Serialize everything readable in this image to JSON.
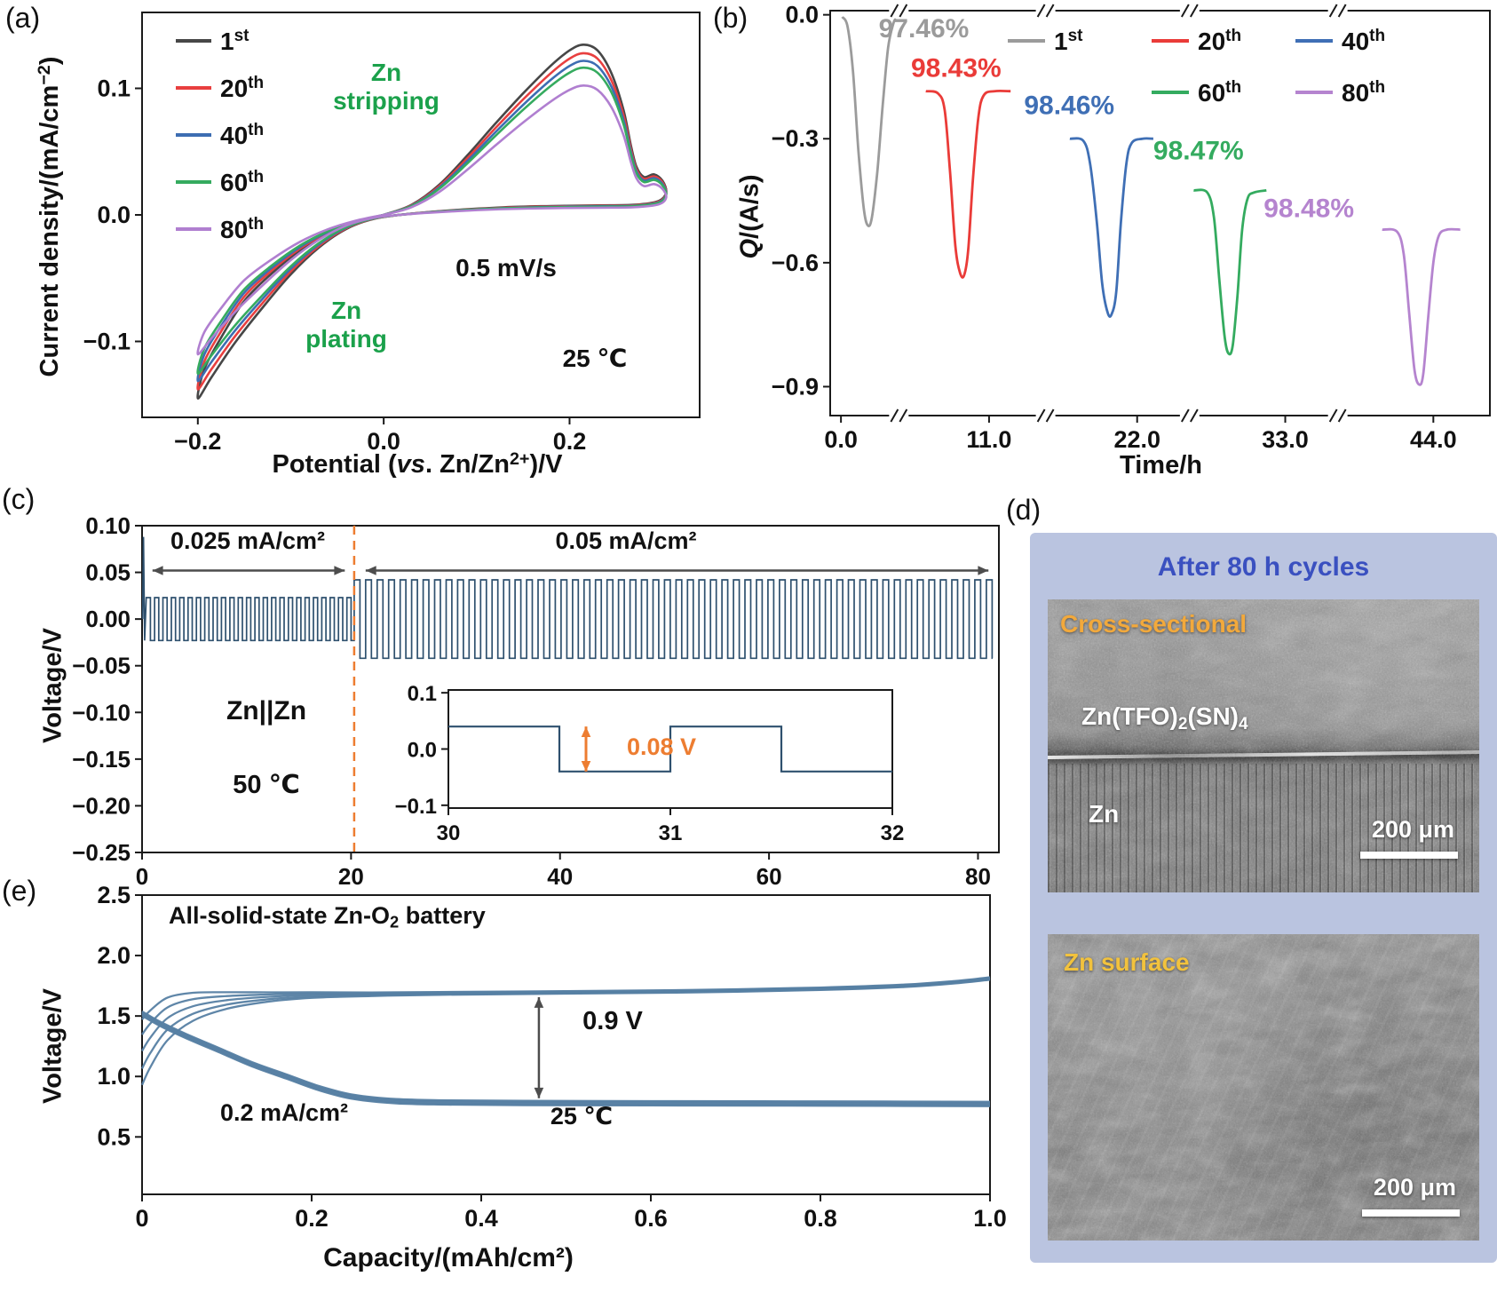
{
  "panel_tags": {
    "a": "(a)",
    "b": "(b)",
    "c": "(c)",
    "d": "(d)",
    "e": "(e)"
  },
  "chart_data": [
    {
      "id": "a",
      "type": "line",
      "title": "",
      "xlabel": "Potential (vs. Zn/Zn²⁺)/V",
      "xlabel_rich": [
        {
          "t": "Potential ("
        },
        {
          "t": "vs",
          "i": true
        },
        {
          "t": ". Zn/Zn"
        },
        {
          "t": "2+",
          "sup": true
        },
        {
          "t": ")/V"
        }
      ],
      "ylabel": "Current density/(mA/cm⁻²)",
      "ylabel_rich": [
        {
          "t": "Current density/(mA/cm"
        },
        {
          "t": "−2",
          "sup": true
        },
        {
          "t": ")"
        }
      ],
      "xlim": [
        -0.26,
        0.34
      ],
      "ylim": [
        -0.16,
        0.16
      ],
      "xticks": {
        "values": [
          -0.2,
          0,
          0.2
        ],
        "labels": [
          "−0.2",
          "0.0",
          "0.2"
        ]
      },
      "yticks": {
        "values": [
          -0.1,
          0,
          0.1
        ],
        "labels": [
          "−0.1",
          "0.0",
          "0.1"
        ]
      },
      "annotations": {
        "stripping": "Zn\nstripping",
        "plating": "Zn\nplating",
        "scan_rate": "0.5 mV/s",
        "temperature": "25 ℃",
        "green": "#1ba14b"
      },
      "base_shape": [
        [
          0.0,
          0.0
        ],
        [
          0.03,
          0.008
        ],
        [
          0.06,
          0.024
        ],
        [
          0.09,
          0.047
        ],
        [
          0.12,
          0.072
        ],
        [
          0.15,
          0.096
        ],
        [
          0.18,
          0.118
        ],
        [
          0.2,
          0.13
        ],
        [
          0.215,
          0.1345
        ],
        [
          0.23,
          0.13
        ],
        [
          0.245,
          0.112
        ],
        [
          0.258,
          0.083
        ],
        [
          0.266,
          0.055
        ],
        [
          0.272,
          0.038
        ],
        [
          0.28,
          0.03
        ],
        [
          0.291,
          0.032
        ],
        [
          0.3,
          0.027
        ],
        [
          0.304,
          0.018
        ],
        [
          0.296,
          0.011
        ],
        [
          0.27,
          0.008
        ],
        [
          0.23,
          0.0075
        ],
        [
          0.18,
          0.007
        ],
        [
          0.13,
          0.006
        ],
        [
          0.08,
          0.004
        ],
        [
          0.03,
          0.001
        ],
        [
          -0.01,
          -0.003
        ],
        [
          -0.04,
          -0.011
        ],
        [
          -0.07,
          -0.026
        ],
        [
          -0.1,
          -0.047
        ],
        [
          -0.13,
          -0.073
        ],
        [
          -0.16,
          -0.101
        ],
        [
          -0.185,
          -0.128
        ],
        [
          -0.2,
          -0.145
        ],
        [
          -0.193,
          -0.122
        ],
        [
          -0.175,
          -0.097
        ],
        [
          -0.15,
          -0.068
        ],
        [
          -0.12,
          -0.046
        ],
        [
          -0.09,
          -0.028
        ],
        [
          -0.06,
          -0.015
        ],
        [
          -0.03,
          -0.006
        ],
        [
          0.0,
          0.0
        ]
      ],
      "series": [
        {
          "num": "1",
          "ord": "st",
          "label": "1st",
          "color": "#474747",
          "scale": 1.0
        },
        {
          "num": "20",
          "ord": "th",
          "label": "20th",
          "color": "#e83f3f",
          "scale": 0.95
        },
        {
          "num": "40",
          "ord": "th",
          "label": "40th",
          "color": "#3d6db2",
          "scale": 0.905
        },
        {
          "num": "60",
          "ord": "th",
          "label": "60th",
          "color": "#35ab5f",
          "scale": 0.865
        },
        {
          "num": "80",
          "ord": "th",
          "label": "80th",
          "color": "#b07fd0",
          "scale": 0.76
        }
      ]
    },
    {
      "id": "b",
      "type": "line",
      "title": "",
      "xlabel": "Time/h",
      "ylabel": "Q/(A/s)",
      "ylabel_rich": [
        {
          "t": "Q",
          "i": true
        },
        {
          "t": "/(A/s)"
        }
      ],
      "xlim": [
        -0.8,
        48.2
      ],
      "ylim": [
        -0.97,
        0.01
      ],
      "xticks": {
        "values": [
          0,
          11,
          22,
          33,
          44
        ],
        "labels": [
          "0.0",
          "11.0",
          "22.0",
          "33.0",
          "44.0"
        ]
      },
      "yticks": {
        "values": [
          0,
          -0.3,
          -0.6,
          -0.9
        ],
        "labels": [
          "0.0",
          "−0.3",
          "−0.6",
          "−0.9"
        ]
      },
      "axis_breaks": [
        4.3,
        15.2,
        25.9,
        36.9
      ],
      "legend_positions": [
        [
          335,
          46
        ],
        [
          497,
          46
        ],
        [
          659,
          46
        ],
        [
          497,
          104
        ],
        [
          659,
          104
        ]
      ],
      "series": [
        {
          "num": "1",
          "ord": "st",
          "label": "1st",
          "color": "#9b9b9b",
          "efficiency": "97.46%",
          "label_at": [
            2.8,
            -0.055
          ],
          "points": [
            [
              0.1,
              -0.005
            ],
            [
              0.5,
              -0.03
            ],
            [
              0.9,
              -0.14
            ],
            [
              1.3,
              -0.33
            ],
            [
              1.7,
              -0.47
            ],
            [
              2.0,
              -0.51
            ],
            [
              2.3,
              -0.49
            ],
            [
              2.7,
              -0.38
            ],
            [
              3.1,
              -0.22
            ],
            [
              3.5,
              -0.08
            ],
            [
              3.9,
              -0.02
            ],
            [
              4.1,
              -0.01
            ]
          ]
        },
        {
          "num": "20",
          "ord": "th",
          "label": "20th",
          "color": "#ea3b38",
          "efficiency": "98.43%",
          "label_at": [
            5.2,
            -0.15
          ],
          "points": [
            [
              6.3,
              -0.185
            ],
            [
              7.2,
              -0.19
            ],
            [
              7.7,
              -0.23
            ],
            [
              8.1,
              -0.38
            ],
            [
              8.5,
              -0.56
            ],
            [
              8.85,
              -0.625
            ],
            [
              9.15,
              -0.63
            ],
            [
              9.45,
              -0.57
            ],
            [
              9.8,
              -0.4
            ],
            [
              10.2,
              -0.25
            ],
            [
              10.6,
              -0.195
            ],
            [
              11.4,
              -0.185
            ],
            [
              12.6,
              -0.185
            ]
          ]
        },
        {
          "num": "40",
          "ord": "th",
          "label": "40th",
          "color": "#3f6fb5",
          "efficiency": "98.46%",
          "label_at": [
            13.6,
            -0.24
          ],
          "points": [
            [
              17.0,
              -0.3
            ],
            [
              18.0,
              -0.305
            ],
            [
              18.5,
              -0.36
            ],
            [
              19.0,
              -0.5
            ],
            [
              19.4,
              -0.65
            ],
            [
              19.8,
              -0.72
            ],
            [
              20.1,
              -0.725
            ],
            [
              20.45,
              -0.67
            ],
            [
              20.8,
              -0.5
            ],
            [
              21.2,
              -0.36
            ],
            [
              21.6,
              -0.31
            ],
            [
              22.4,
              -0.3
            ],
            [
              23.2,
              -0.3
            ]
          ]
        },
        {
          "num": "60",
          "ord": "th",
          "label": "60th",
          "color": "#34ab5f",
          "efficiency": "98.47%",
          "label_at": [
            23.2,
            -0.35
          ],
          "points": [
            [
              26.2,
              -0.425
            ],
            [
              27.2,
              -0.43
            ],
            [
              27.7,
              -0.49
            ],
            [
              28.1,
              -0.64
            ],
            [
              28.5,
              -0.78
            ],
            [
              28.8,
              -0.82
            ],
            [
              29.1,
              -0.8
            ],
            [
              29.45,
              -0.68
            ],
            [
              29.8,
              -0.52
            ],
            [
              30.2,
              -0.445
            ],
            [
              30.7,
              -0.43
            ],
            [
              31.6,
              -0.425
            ]
          ]
        },
        {
          "num": "80",
          "ord": "th",
          "label": "80th",
          "color": "#b584cf",
          "efficiency": "98.48%",
          "label_at": [
            31.4,
            -0.49
          ],
          "points": [
            [
              40.2,
              -0.52
            ],
            [
              41.3,
              -0.525
            ],
            [
              41.8,
              -0.58
            ],
            [
              42.2,
              -0.72
            ],
            [
              42.6,
              -0.86
            ],
            [
              42.95,
              -0.895
            ],
            [
              43.25,
              -0.87
            ],
            [
              43.6,
              -0.74
            ],
            [
              44.0,
              -0.6
            ],
            [
              44.4,
              -0.535
            ],
            [
              45.0,
              -0.52
            ],
            [
              46.0,
              -0.52
            ]
          ]
        }
      ]
    },
    {
      "id": "c",
      "type": "line",
      "title": "",
      "xlabel": "",
      "ylabel": "Voltage/V",
      "xlim": [
        0,
        82
      ],
      "ylim": [
        -0.25,
        0.1
      ],
      "xticks": {
        "values": [
          0,
          20,
          40,
          60,
          80
        ],
        "labels": [
          "0",
          "20",
          "40",
          "60",
          "80"
        ]
      },
      "yticks": {
        "values": [
          0.1,
          0.05,
          0,
          -0.05,
          -0.1,
          -0.15,
          -0.2,
          -0.25
        ],
        "labels": [
          "0.10",
          "0.05",
          "0.00",
          "−0.05",
          "−0.10",
          "−0.15",
          "−0.20",
          "−0.25"
        ]
      },
      "wave_color": "#2e506e",
      "dash_color": "#ed7d31",
      "arrow_color": "#4d4d4d",
      "spike": [
        [
          0.05,
          0.0
        ],
        [
          0.14,
          0.088
        ],
        [
          0.25,
          -0.023
        ]
      ],
      "segments": [
        {
          "t0": 0.4,
          "t1": 20.3,
          "period": 0.8,
          "amplitude": 0.023
        },
        {
          "t0": 20.3,
          "t1": 81.4,
          "period": 1.1,
          "amplitude": 0.042
        }
      ],
      "dashed_line_x": 20.3,
      "regions": [
        {
          "x0": 1.0,
          "x1": 19.4,
          "y": 0.052,
          "label": "0.025 mA/cm²"
        },
        {
          "x0": 21.4,
          "x1": 81.0,
          "y": 0.052,
          "label": "0.05 mA/cm²"
        }
      ],
      "cell_label": "Zn||Zn",
      "temperature": "50 ℃",
      "inset": {
        "xlim": [
          30,
          32
        ],
        "ylim": [
          -0.105,
          0.105
        ],
        "xticks": {
          "values": [
            30,
            31,
            32
          ],
          "labels": [
            "30",
            "31",
            "32"
          ]
        },
        "yticks": {
          "values": [
            0.1,
            0,
            -0.1
          ],
          "labels": [
            "0.1",
            "0.0",
            "−0.1"
          ]
        },
        "period": 1.0,
        "amplitude": 0.04,
        "start_high": true,
        "gap_label": "0.08 V",
        "gap_x": 30.62
      }
    },
    {
      "id": "e",
      "type": "line",
      "title": "All-solid-state Zn-O₂ battery",
      "title_rich": [
        {
          "t": "All-solid-state Zn-O"
        },
        {
          "t": "2",
          "sub": true
        },
        {
          "t": " battery"
        }
      ],
      "xlabel": "Capacity/(mAh/cm²)",
      "ylabel": "Voltage/V",
      "xlim": [
        0,
        1.0
      ],
      "ylim": [
        0.025,
        2.5
      ],
      "xticks": {
        "values": [
          0,
          0.2,
          0.4,
          0.6,
          0.8,
          1.0
        ],
        "labels": [
          "0",
          "0.2",
          "0.4",
          "0.6",
          "0.8",
          "1.0"
        ]
      },
      "yticks": {
        "values": [
          0.5,
          1.0,
          1.5,
          2.0,
          2.5
        ],
        "labels": [
          "0.5",
          "1.0",
          "1.5",
          "2.0",
          "2.5"
        ]
      },
      "curve_color": "#567fa3",
      "arrow_color": "#4d4d4d",
      "rate": "0.2 mA/cm²",
      "temperature": "25 ℃",
      "gap": {
        "x": 0.468,
        "y0": 0.82,
        "y1": 1.655,
        "label": "0.9 V"
      },
      "charge_base": [
        [
          0,
          0.93
        ],
        [
          0.01,
          1.08
        ],
        [
          0.03,
          1.3
        ],
        [
          0.06,
          1.46
        ],
        [
          0.1,
          1.56
        ],
        [
          0.15,
          1.62
        ],
        [
          0.2,
          1.65
        ],
        [
          0.27,
          1.665
        ],
        [
          0.35,
          1.675
        ],
        [
          0.5,
          1.685
        ],
        [
          0.65,
          1.695
        ],
        [
          0.8,
          1.715
        ],
        [
          0.9,
          1.74
        ],
        [
          0.96,
          1.77
        ],
        [
          1.0,
          1.8
        ]
      ],
      "discharge_base": [
        [
          0,
          1.52
        ],
        [
          0.02,
          1.44
        ],
        [
          0.05,
          1.34
        ],
        [
          0.09,
          1.22
        ],
        [
          0.13,
          1.1
        ],
        [
          0.17,
          1.0
        ],
        [
          0.21,
          0.9
        ],
        [
          0.25,
          0.83
        ],
        [
          0.3,
          0.795
        ],
        [
          0.36,
          0.785
        ],
        [
          0.45,
          0.78
        ],
        [
          0.6,
          0.778
        ],
        [
          0.8,
          0.776
        ],
        [
          1.0,
          0.772
        ]
      ],
      "charge_offsets": [
        0,
        0.13,
        0.27,
        0.4,
        0.52
      ],
      "discharge_offsets": [
        0,
        0.01,
        -0.01,
        0.018,
        -0.018
      ]
    }
  ],
  "panel_d": {
    "title": "After 80 h cycles",
    "title_color": "#3a50c0",
    "bg": "#bac4e0",
    "images": [
      {
        "region_label": "Cross-sectional",
        "region_label_color": "#f2a93c",
        "layer_label": "Zn(TFO)₂(SN)₄",
        "layer_label_rich": [
          {
            "t": "Zn(TFO)"
          },
          {
            "t": "2",
            "sub": true
          },
          {
            "t": "(SN)"
          },
          {
            "t": "4",
            "sub": true
          }
        ],
        "material_label": "Zn",
        "scalebar": "200 μm"
      },
      {
        "region_label": "Zn surface",
        "region_label_color": "#f2c23d",
        "scalebar": "200 μm"
      }
    ]
  }
}
